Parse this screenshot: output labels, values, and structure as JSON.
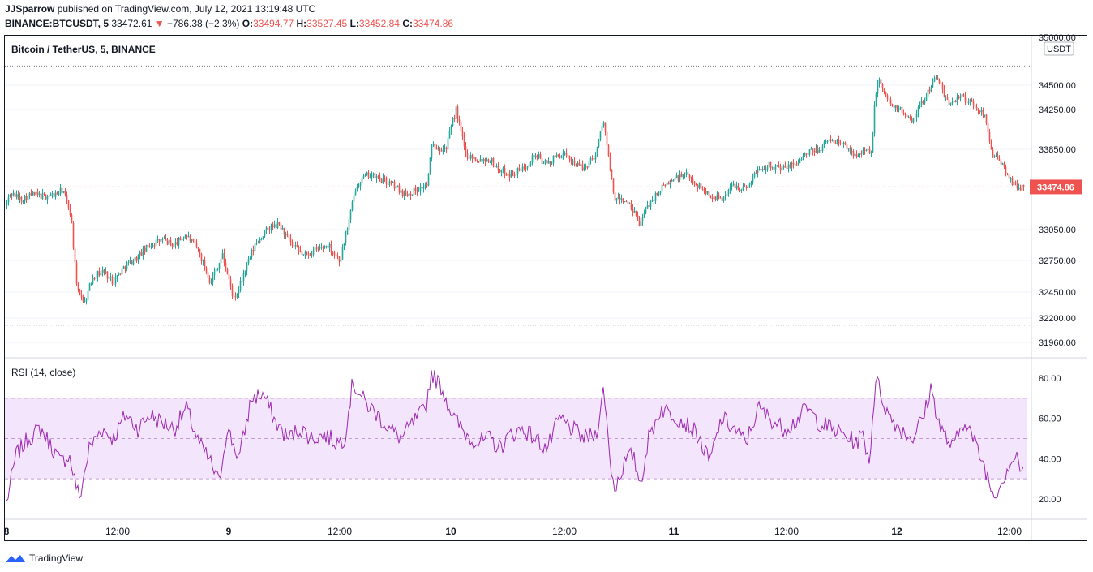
{
  "header": {
    "author": "JJSparrow",
    "published_text": "published on TradingView.com, July 12, 2021 13:19:48 UTC",
    "symbol": "BINANCE:BTCUSDT, 5",
    "last_price": "33472.61",
    "change": "−786.38 (−2.3%)",
    "o_label": "O:",
    "o_value": "33494.77",
    "h_label": "H:",
    "h_value": "33527.45",
    "l_label": "L:",
    "l_value": "33452.84",
    "c_label": "C:",
    "c_value": "33474.86"
  },
  "footer": {
    "brand": "TradingView"
  },
  "colors": {
    "up": "#26a69a",
    "down": "#ef5350",
    "rsi_line": "#9c27b0",
    "rsi_band": "#f3e5fc",
    "price_label_bg": "#ef5350"
  },
  "chart_data": [
    {
      "type": "candlestick",
      "title": "Bitcoin / TetherUS, 5, BINANCE",
      "currency_label": "USDT",
      "last_price_label": "33474.86",
      "y_ticks": [
        "35000.00",
        "34500.00",
        "34250.00",
        "33850.00",
        "33050.00",
        "32750.00",
        "32450.00",
        "32200.00",
        "31960.00"
      ],
      "y_tick_values": [
        35000,
        34500,
        34250,
        33850,
        33050,
        32750,
        32450,
        32200,
        31960
      ],
      "x_ticks": [
        "8",
        "12:00",
        "9",
        "12:00",
        "10",
        "12:00",
        "11",
        "12:00",
        "12",
        "12:00"
      ],
      "session_high": 34700,
      "session_low": 32130,
      "anchors": [
        [
          0,
          33900
        ],
        [
          6,
          33250
        ],
        [
          14,
          33420
        ],
        [
          26,
          33350
        ],
        [
          40,
          33400
        ],
        [
          55,
          33380
        ],
        [
          70,
          33400
        ],
        [
          78,
          33450
        ],
        [
          88,
          33200
        ],
        [
          95,
          32500
        ],
        [
          105,
          32350
        ],
        [
          115,
          32600
        ],
        [
          128,
          32650
        ],
        [
          140,
          32550
        ],
        [
          155,
          32700
        ],
        [
          170,
          32780
        ],
        [
          185,
          32900
        ],
        [
          200,
          32950
        ],
        [
          215,
          32900
        ],
        [
          230,
          33000
        ],
        [
          245,
          32850
        ],
        [
          260,
          32550
        ],
        [
          275,
          32800
        ],
        [
          290,
          32350
        ],
        [
          300,
          32600
        ],
        [
          315,
          32900
        ],
        [
          330,
          33050
        ],
        [
          345,
          33100
        ],
        [
          360,
          32900
        ],
        [
          375,
          32800
        ],
        [
          390,
          32850
        ],
        [
          405,
          32900
        ],
        [
          420,
          32750
        ],
        [
          430,
          33100
        ],
        [
          440,
          33500
        ],
        [
          455,
          33600
        ],
        [
          470,
          33550
        ],
        [
          485,
          33500
        ],
        [
          500,
          33400
        ],
        [
          515,
          33450
        ],
        [
          528,
          33500
        ],
        [
          533,
          33900
        ],
        [
          550,
          33850
        ],
        [
          563,
          34250
        ],
        [
          575,
          33800
        ],
        [
          590,
          33750
        ],
        [
          605,
          33750
        ],
        [
          615,
          33650
        ],
        [
          630,
          33600
        ],
        [
          645,
          33650
        ],
        [
          660,
          33800
        ],
        [
          675,
          33700
        ],
        [
          690,
          33800
        ],
        [
          705,
          33750
        ],
        [
          720,
          33650
        ],
        [
          735,
          33800
        ],
        [
          745,
          34150
        ],
        [
          752,
          33700
        ],
        [
          758,
          33350
        ],
        [
          770,
          33350
        ],
        [
          780,
          33250
        ],
        [
          790,
          33100
        ],
        [
          800,
          33300
        ],
        [
          815,
          33450
        ],
        [
          830,
          33550
        ],
        [
          845,
          33600
        ],
        [
          860,
          33500
        ],
        [
          875,
          33400
        ],
        [
          890,
          33350
        ],
        [
          905,
          33500
        ],
        [
          920,
          33450
        ],
        [
          935,
          33650
        ],
        [
          950,
          33700
        ],
        [
          965,
          33650
        ],
        [
          980,
          33700
        ],
        [
          995,
          33800
        ],
        [
          1010,
          33850
        ],
        [
          1025,
          33950
        ],
        [
          1040,
          33900
        ],
        [
          1055,
          33800
        ],
        [
          1065,
          33850
        ],
        [
          1075,
          33800
        ],
        [
          1080,
          34400
        ],
        [
          1085,
          34550
        ],
        [
          1095,
          34350
        ],
        [
          1110,
          34250
        ],
        [
          1125,
          34150
        ],
        [
          1140,
          34350
        ],
        [
          1155,
          34600
        ],
        [
          1170,
          34300
        ],
        [
          1185,
          34400
        ],
        [
          1200,
          34300
        ],
        [
          1215,
          34200
        ],
        [
          1225,
          33800
        ],
        [
          1240,
          33650
        ],
        [
          1250,
          33500
        ],
        [
          1260,
          33470
        ]
      ]
    },
    {
      "type": "line",
      "title": "RSI (14, close)",
      "y_ticks": [
        "80.00",
        "60.00",
        "40.00",
        "20.00"
      ],
      "y_tick_values": [
        80,
        60,
        40,
        20
      ],
      "band_upper": 70,
      "band_middle": 50,
      "band_lower": 30,
      "ylim": [
        13,
        85
      ],
      "anchors": [
        [
          0,
          35
        ],
        [
          8,
          18
        ],
        [
          20,
          42
        ],
        [
          35,
          50
        ],
        [
          50,
          55
        ],
        [
          65,
          45
        ],
        [
          75,
          38
        ],
        [
          85,
          42
        ],
        [
          92,
          30
        ],
        [
          98,
          20
        ],
        [
          110,
          45
        ],
        [
          125,
          55
        ],
        [
          140,
          50
        ],
        [
          155,
          62
        ],
        [
          170,
          55
        ],
        [
          185,
          62
        ],
        [
          200,
          58
        ],
        [
          215,
          55
        ],
        [
          230,
          65
        ],
        [
          245,
          48
        ],
        [
          260,
          38
        ],
        [
          270,
          28
        ],
        [
          280,
          55
        ],
        [
          295,
          40
        ],
        [
          310,
          70
        ],
        [
          325,
          72
        ],
        [
          340,
          58
        ],
        [
          355,
          50
        ],
        [
          370,
          55
        ],
        [
          385,
          50
        ],
        [
          400,
          52
        ],
        [
          415,
          48
        ],
        [
          425,
          50
        ],
        [
          435,
          78
        ],
        [
          450,
          68
        ],
        [
          465,
          62
        ],
        [
          480,
          55
        ],
        [
          495,
          50
        ],
        [
          510,
          58
        ],
        [
          525,
          65
        ],
        [
          532,
          83
        ],
        [
          545,
          75
        ],
        [
          560,
          60
        ],
        [
          575,
          52
        ],
        [
          590,
          48
        ],
        [
          605,
          50
        ],
        [
          615,
          45
        ],
        [
          630,
          52
        ],
        [
          645,
          55
        ],
        [
          660,
          50
        ],
        [
          675,
          45
        ],
        [
          690,
          60
        ],
        [
          705,
          55
        ],
        [
          720,
          50
        ],
        [
          735,
          52
        ],
        [
          745,
          75
        ],
        [
          752,
          40
        ],
        [
          758,
          25
        ],
        [
          770,
          38
        ],
        [
          780,
          42
        ],
        [
          790,
          28
        ],
        [
          800,
          50
        ],
        [
          815,
          65
        ],
        [
          830,
          62
        ],
        [
          845,
          58
        ],
        [
          860,
          52
        ],
        [
          875,
          38
        ],
        [
          890,
          60
        ],
        [
          905,
          55
        ],
        [
          920,
          48
        ],
        [
          935,
          65
        ],
        [
          950,
          60
        ],
        [
          965,
          55
        ],
        [
          980,
          58
        ],
        [
          995,
          65
        ],
        [
          1010,
          58
        ],
        [
          1025,
          55
        ],
        [
          1040,
          52
        ],
        [
          1055,
          48
        ],
        [
          1065,
          52
        ],
        [
          1072,
          38
        ],
        [
          1080,
          80
        ],
        [
          1095,
          62
        ],
        [
          1110,
          55
        ],
        [
          1125,
          50
        ],
        [
          1140,
          62
        ],
        [
          1148,
          75
        ],
        [
          1160,
          55
        ],
        [
          1175,
          45
        ],
        [
          1190,
          60
        ],
        [
          1205,
          45
        ],
        [
          1215,
          35
        ],
        [
          1225,
          22
        ],
        [
          1235,
          28
        ],
        [
          1245,
          38
        ],
        [
          1255,
          42
        ],
        [
          1260,
          32
        ]
      ]
    }
  ]
}
